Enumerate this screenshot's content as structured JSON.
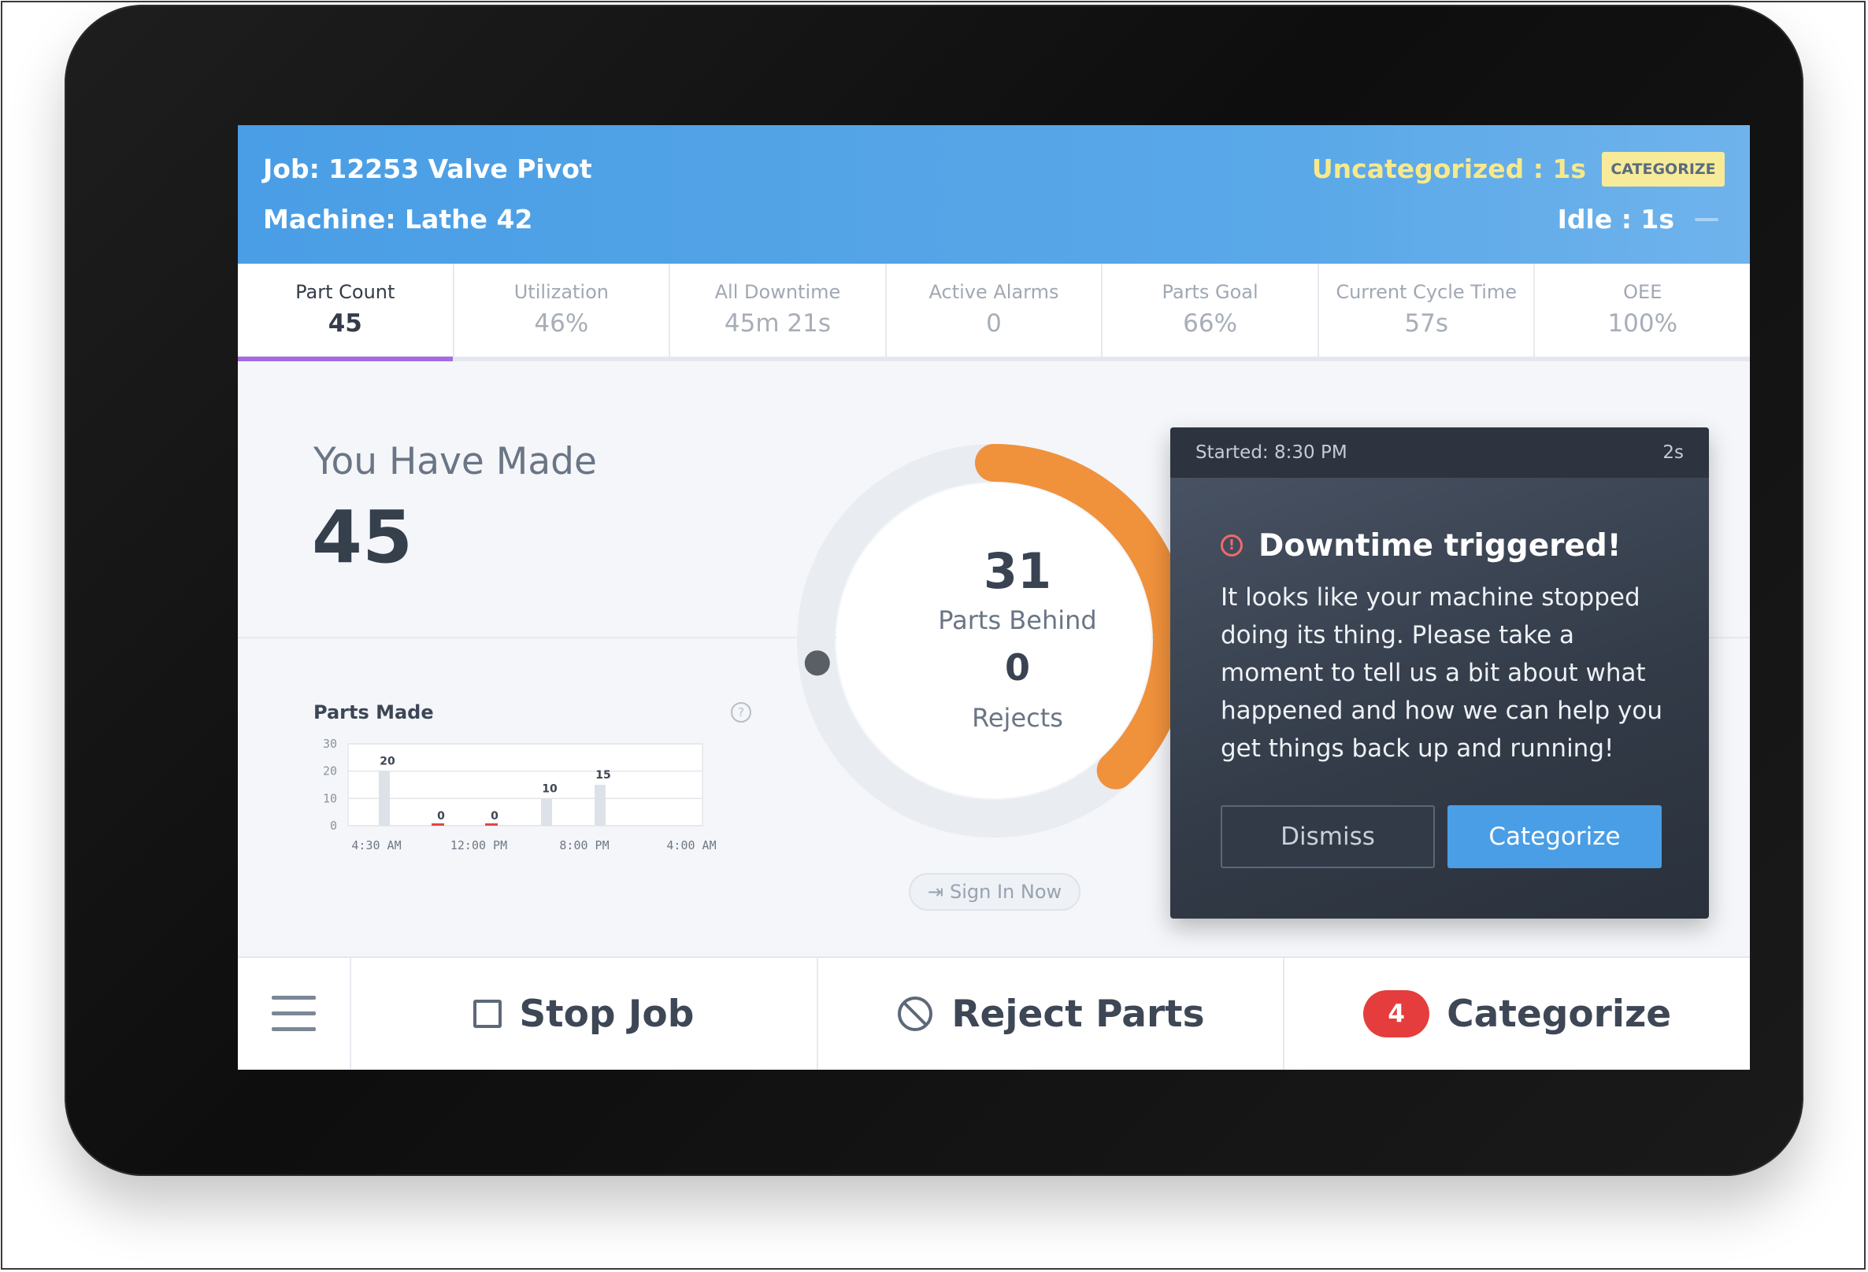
{
  "header": {
    "job": "Job: 12253 Valve Pivot",
    "machine": "Machine: Lathe 42",
    "uncategorized": "Uncategorized : 1s",
    "categorize_tag": "CATEGORIZE",
    "idle": "Idle : 1s"
  },
  "stats": [
    {
      "label": "Part Count",
      "value": "45"
    },
    {
      "label": "Utilization",
      "value": "46%"
    },
    {
      "label": "All Downtime",
      "value": "45m 21s"
    },
    {
      "label": "Active Alarms",
      "value": "0"
    },
    {
      "label": "Parts Goal",
      "value": "66%"
    },
    {
      "label": "Current Cycle Time",
      "value": "57s"
    },
    {
      "label": "OEE",
      "value": "100%"
    }
  ],
  "made": {
    "label": "You Have Made",
    "value": "45"
  },
  "progress": {
    "behind_value": "31",
    "behind_label": "Parts Behind",
    "rejects_value": "0",
    "rejects_label": "Rejects",
    "arc_start_fraction": 0.0,
    "arc_end_fraction": 0.38,
    "arc_color": "#f0913c"
  },
  "signin": {
    "label": "Sign In Now"
  },
  "downtime": {
    "started": "Started: 8:30 PM",
    "elapsed": "2s",
    "title": "Downtime triggered!",
    "body": "It looks like your machine stopped doing its thing. Please take a moment to tell us a bit about what happened and how we can help you get things back up and running!",
    "dismiss": "Dismiss",
    "categorize": "Categorize"
  },
  "bottom": {
    "stop_job": "Stop Job",
    "reject_parts": "Reject Parts",
    "categorize": "Categorize",
    "badge_count": "4"
  },
  "chart_data": {
    "type": "bar",
    "title": "Parts Made",
    "x_ticks": [
      "4:30 AM",
      "12:00 PM",
      "8:00 PM",
      "4:00 AM"
    ],
    "y_ticks": [
      "30",
      "20",
      "10",
      "0"
    ],
    "ylim": [
      0,
      30
    ],
    "values": [
      20,
      0,
      0,
      10,
      15
    ],
    "value_labels": [
      "20",
      "0",
      "0",
      "10",
      "15"
    ]
  }
}
